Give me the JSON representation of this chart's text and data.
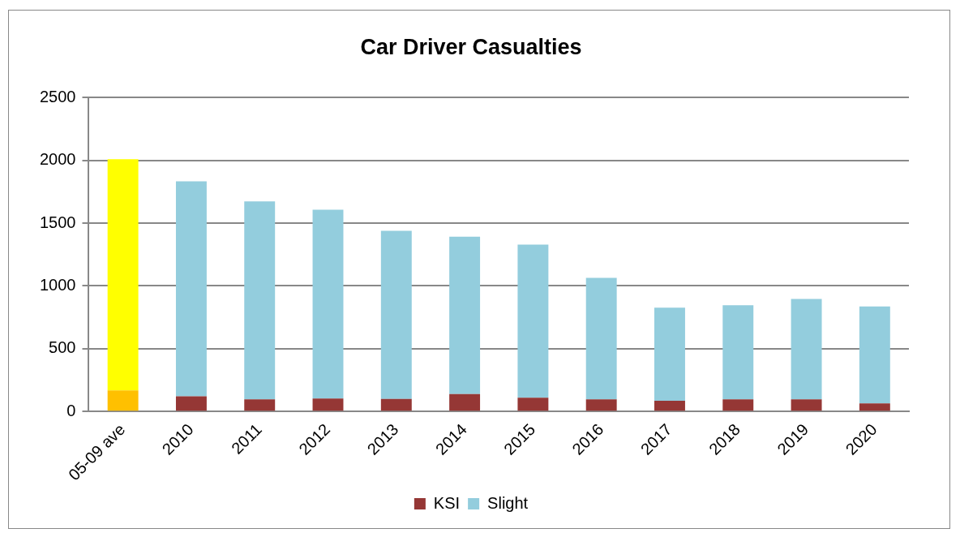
{
  "chart_data": {
    "type": "bar",
    "title": "Car Driver Casualties",
    "stacked": true,
    "categories": [
      "05-09 ave",
      "2010",
      "2011",
      "2012",
      "2013",
      "2014",
      "2015",
      "2016",
      "2017",
      "2018",
      "2019",
      "2020"
    ],
    "series": [
      {
        "name": "KSI",
        "color": "#953735",
        "colors": [
          "#ffc000",
          "#953735",
          "#953735",
          "#953735",
          "#953735",
          "#953735",
          "#953735",
          "#953735",
          "#953735",
          "#953735",
          "#953735",
          "#953735"
        ],
        "values": [
          167,
          120,
          96,
          103,
          100,
          139,
          109,
          96,
          85,
          96,
          96,
          64
        ]
      },
      {
        "name": "Slight",
        "color": "#93cddd",
        "colors": [
          "#ffff00",
          "#93cddd",
          "#93cddd",
          "#93cddd",
          "#93cddd",
          "#93cddd",
          "#93cddd",
          "#93cddd",
          "#93cddd",
          "#93cddd",
          "#93cddd",
          "#93cddd"
        ],
        "values": [
          1843,
          1713,
          1578,
          1505,
          1339,
          1253,
          1220,
          969,
          741,
          750,
          800,
          772
        ]
      }
    ],
    "ylim": [
      0,
      2500
    ],
    "yticks": [
      0,
      500,
      1000,
      1500,
      2000,
      2500
    ],
    "grid": "y",
    "legend": "bottom"
  }
}
